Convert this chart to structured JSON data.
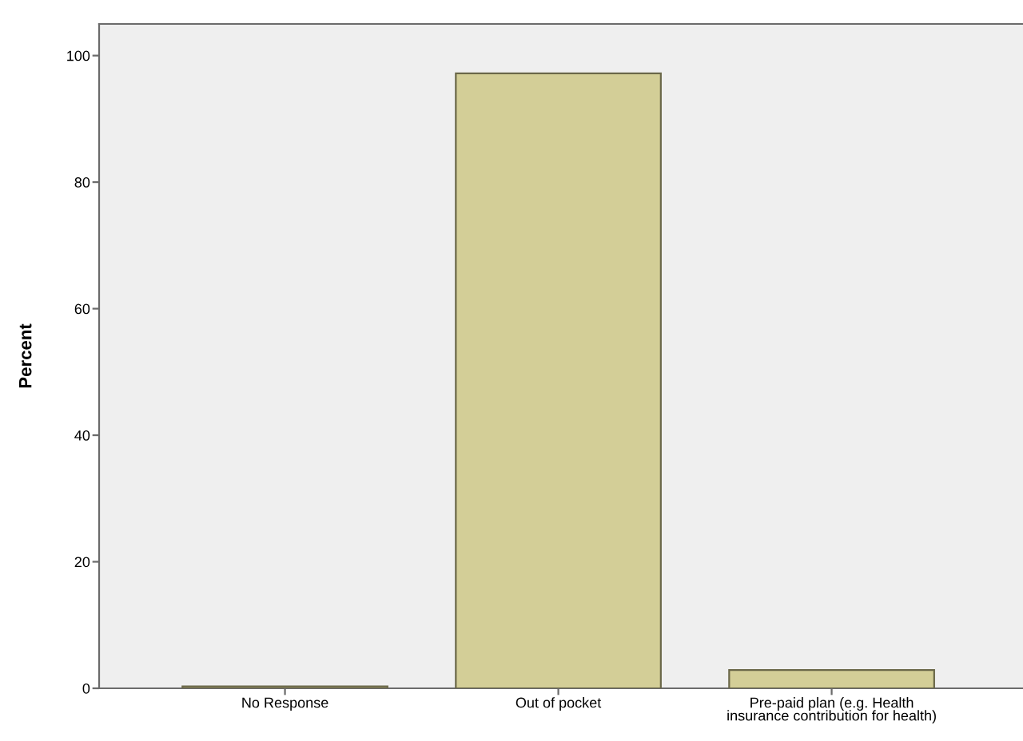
{
  "chart_data": {
    "type": "bar",
    "ylabel": "Percent",
    "categories": [
      "No Response",
      "Out of pocket",
      "Pre-paid plan (e.g. Health\ninsurance contribution for health)"
    ],
    "values": [
      0.3,
      97.2,
      2.9
    ],
    "color": "#d3ce97",
    "ylim": [
      0,
      105
    ],
    "yticks": [
      0,
      20,
      40,
      60,
      80,
      100
    ],
    "grid": false,
    "legend": false
  }
}
